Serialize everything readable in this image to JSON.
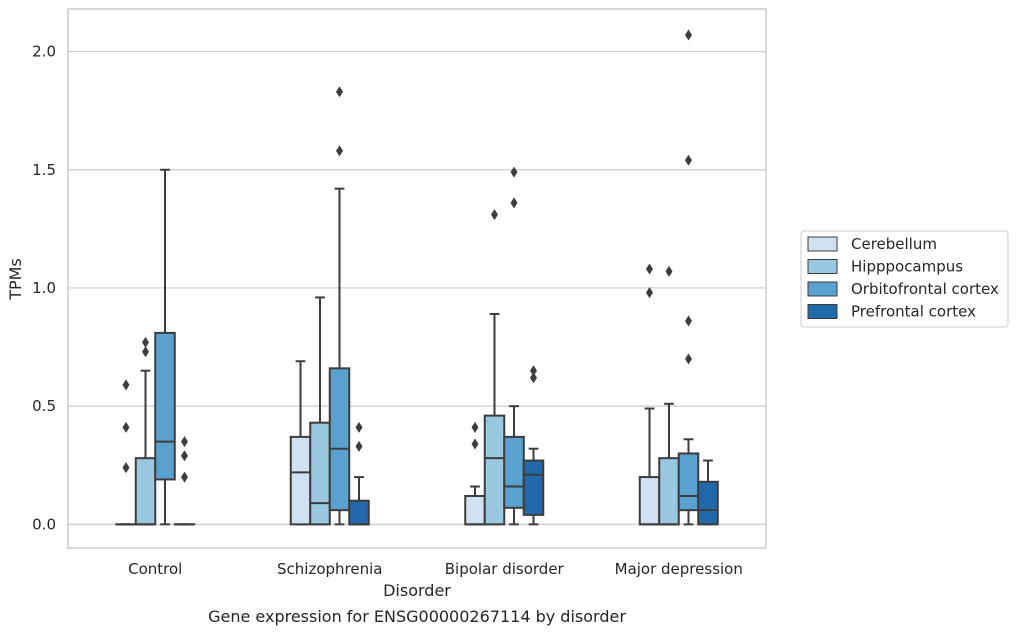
{
  "caption": "Gene expression for ENSG00000267114 by disorder",
  "chart_data": {
    "type": "boxplot",
    "xlabel": "Disorder",
    "ylabel": "TPMs",
    "ylim": [
      -0.1,
      2.18
    ],
    "yticks": [
      0.0,
      0.5,
      1.0,
      1.5,
      2.0
    ],
    "ytick_labels": [
      "0.0",
      "0.5",
      "1.0",
      "1.5",
      "2.0"
    ],
    "grid": "horizontal",
    "legend_position": "right",
    "categories": [
      "Control",
      "Schizophrenia",
      "Bipolar disorder",
      "Major depression"
    ],
    "series": [
      {
        "name": "Cerebellum",
        "color": "#d0e1f2",
        "boxes": [
          {
            "q1": 0.0,
            "median": 0.0,
            "q3": 0.0,
            "whislo": 0.0,
            "whishi": 0.0,
            "fliers": [
              0.24,
              0.41,
              0.59
            ]
          },
          {
            "q1": 0.0,
            "median": 0.22,
            "q3": 0.37,
            "whislo": 0.0,
            "whishi": 0.69,
            "fliers": []
          },
          {
            "q1": 0.0,
            "median": 0.0,
            "q3": 0.12,
            "whislo": 0.0,
            "whishi": 0.16,
            "fliers": [
              0.34,
              0.41
            ]
          },
          {
            "q1": 0.0,
            "median": 0.0,
            "q3": 0.2,
            "whislo": 0.0,
            "whishi": 0.49,
            "fliers": [
              0.98,
              1.08
            ]
          }
        ]
      },
      {
        "name": "Hipppocampus",
        "color": "#9ac8e0",
        "boxes": [
          {
            "q1": 0.0,
            "median": 0.0,
            "q3": 0.28,
            "whislo": 0.0,
            "whishi": 0.65,
            "fliers": [
              0.73,
              0.77
            ]
          },
          {
            "q1": 0.0,
            "median": 0.09,
            "q3": 0.43,
            "whislo": 0.0,
            "whishi": 0.96,
            "fliers": []
          },
          {
            "q1": 0.0,
            "median": 0.28,
            "q3": 0.46,
            "whislo": 0.0,
            "whishi": 0.89,
            "fliers": [
              1.31
            ]
          },
          {
            "q1": 0.0,
            "median": 0.0,
            "q3": 0.28,
            "whislo": 0.0,
            "whishi": 0.51,
            "fliers": [
              1.07
            ]
          }
        ]
      },
      {
        "name": "Orbitofrontal cortex",
        "color": "#5aa1cf",
        "boxes": [
          {
            "q1": 0.19,
            "median": 0.35,
            "q3": 0.81,
            "whislo": 0.0,
            "whishi": 1.5,
            "fliers": []
          },
          {
            "q1": 0.06,
            "median": 0.32,
            "q3": 0.66,
            "whislo": 0.0,
            "whishi": 1.42,
            "fliers": [
              1.58,
              1.83
            ]
          },
          {
            "q1": 0.07,
            "median": 0.16,
            "q3": 0.37,
            "whislo": 0.0,
            "whishi": 0.5,
            "fliers": [
              1.36,
              1.49
            ]
          },
          {
            "q1": 0.06,
            "median": 0.12,
            "q3": 0.3,
            "whislo": 0.0,
            "whishi": 0.36,
            "fliers": [
              0.7,
              0.86,
              1.54,
              2.07
            ]
          }
        ]
      },
      {
        "name": "Prefrontal cortex",
        "color": "#2269ab",
        "boxes": [
          {
            "q1": 0.0,
            "median": 0.0,
            "q3": 0.0,
            "whislo": 0.0,
            "whishi": 0.0,
            "fliers": [
              0.2,
              0.29,
              0.35
            ]
          },
          {
            "q1": 0.0,
            "median": 0.0,
            "q3": 0.1,
            "whislo": 0.0,
            "whishi": 0.2,
            "fliers": [
              0.33,
              0.41
            ]
          },
          {
            "q1": 0.04,
            "median": 0.21,
            "q3": 0.27,
            "whislo": 0.0,
            "whishi": 0.32,
            "fliers": [
              0.62,
              0.65
            ]
          },
          {
            "q1": 0.0,
            "median": 0.06,
            "q3": 0.18,
            "whislo": 0.0,
            "whishi": 0.27,
            "fliers": []
          }
        ]
      }
    ]
  }
}
